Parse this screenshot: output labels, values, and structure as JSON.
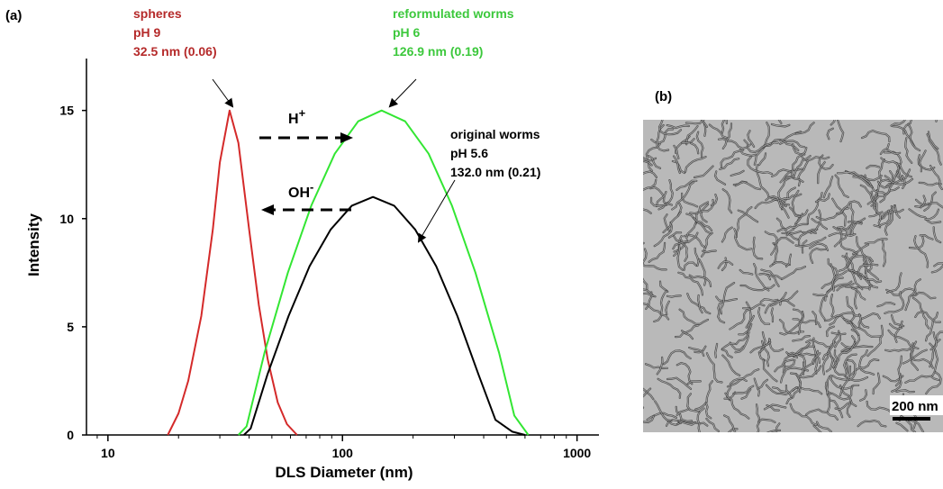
{
  "chart_data": {
    "type": "line",
    "panel_label": "(a)",
    "xlabel": "DLS Diameter (nm)",
    "ylabel": "Intensity",
    "xscale": "log",
    "xlim": [
      8.1,
      1240
    ],
    "ylim": [
      0,
      17.4
    ],
    "xticks": [
      10,
      100,
      1000
    ],
    "yticks": [
      0,
      5,
      10,
      15
    ],
    "series": [
      {
        "color": "#d42a2a",
        "x": [
          18,
          20,
          22,
          25,
          28,
          30,
          33,
          36,
          40,
          44,
          48,
          53,
          58,
          64
        ],
        "values": [
          0,
          1,
          2.5,
          5.5,
          9.5,
          12.6,
          15,
          13.5,
          9.5,
          6,
          3.5,
          1.5,
          0.5,
          0
        ]
      },
      {
        "color": "#33e633",
        "x": [
          36,
          39,
          46.5,
          58.5,
          73.6,
          92.7,
          116.7,
          146.9,
          185,
          233,
          293,
          369,
          465,
          540,
          620
        ],
        "values": [
          0,
          0.4,
          3.8,
          7.5,
          10.6,
          13.0,
          14.5,
          15,
          14.5,
          13.0,
          10.6,
          7.5,
          3.8,
          0.9,
          0
        ]
      },
      {
        "color": "#000000",
        "x": [
          38,
          40.6,
          47.9,
          58.9,
          72.4,
          89.1,
          109.6,
          134.9,
          166,
          204,
          251,
          309,
          380,
          449,
          530,
          600
        ],
        "values": [
          0,
          0.3,
          2.8,
          5.5,
          7.8,
          9.5,
          10.6,
          11,
          10.6,
          9.5,
          7.8,
          5.5,
          2.8,
          0.7,
          0.15,
          0
        ]
      }
    ],
    "annotations": [
      {
        "lines": [
          "spheres",
          "pH 9",
          "32.5 nm (0.06)"
        ],
        "color": "#b52a2a"
      },
      {
        "lines": [
          "reformulated worms",
          "pH 6",
          "126.9 nm (0.19)"
        ],
        "color": "#3cc83c"
      },
      {
        "lines": [
          "original worms",
          "pH 5.6",
          "132.0 nm (0.21)"
        ],
        "color": "#000000"
      }
    ],
    "arrows": [
      {
        "text": "H",
        "sup": "+"
      },
      {
        "text": "OH",
        "sup": "-"
      }
    ]
  },
  "image_panel": {
    "label": "(b)",
    "scale_bar": "200 nm"
  }
}
